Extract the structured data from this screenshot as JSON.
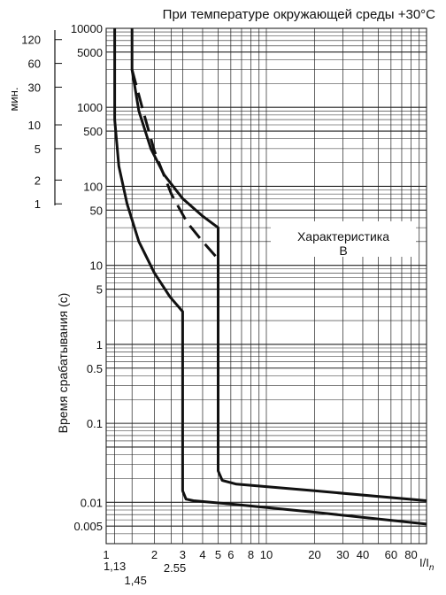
{
  "chart_data": {
    "type": "line",
    "title": "При температуре окружающей среды +30°C",
    "xlabel_main": "I/I",
    "xlabel_sub": "n",
    "ylabel": "Время срабатывания (с)",
    "minutes_label": "мин.",
    "annotation_lines": [
      "Характеристика",
      "B"
    ],
    "x_scale": "log",
    "y_scale": "log",
    "xlim": [
      1,
      100
    ],
    "ylim": [
      0.003,
      10000
    ],
    "grid": true,
    "x_tick_values": [
      1,
      2,
      3,
      4,
      5,
      6,
      8,
      10,
      20,
      30,
      40,
      60,
      80
    ],
    "x_tick_labels": [
      "1",
      "2",
      "3",
      "4",
      "5",
      "6",
      "8",
      "10",
      "20",
      "30",
      "40",
      "60",
      "80"
    ],
    "x_extra_marks": [
      {
        "value": 1.13,
        "label": "1,13"
      },
      {
        "value": 1.45,
        "label": "1,45"
      },
      {
        "value": 2.55,
        "label": "2.55"
      }
    ],
    "y_tick_values": [
      10000,
      5000,
      1000,
      500,
      100,
      50,
      10,
      5,
      1,
      0.5,
      0.1,
      0.01,
      0.005
    ],
    "y_tick_labels": [
      "10000",
      "5000",
      "1000",
      "500",
      "100",
      "50",
      "10",
      "5",
      "1",
      "0.5",
      "0.1",
      "0.01",
      "0.005"
    ],
    "minute_tick_values": [
      7200,
      3600,
      1800,
      600,
      300,
      120,
      60
    ],
    "minute_tick_labels": [
      "120",
      "60",
      "30",
      "10",
      "5",
      "2",
      "1"
    ],
    "series": [
      {
        "style": "solid",
        "points": [
          [
            1.13,
            10000
          ],
          [
            1.13,
            700
          ],
          [
            1.2,
            180
          ],
          [
            1.35,
            60
          ],
          [
            1.6,
            20
          ],
          [
            2.0,
            8
          ],
          [
            2.5,
            4
          ],
          [
            3.0,
            2.6
          ],
          [
            3.0,
            0.014
          ],
          [
            3.15,
            0.011
          ],
          [
            3.5,
            0.0105
          ],
          [
            6,
            0.0095
          ],
          [
            20,
            0.0075
          ],
          [
            100,
            0.0053
          ]
        ]
      },
      {
        "style": "solid",
        "points": [
          [
            1.45,
            10000
          ],
          [
            1.45,
            3000
          ],
          [
            1.6,
            900
          ],
          [
            1.9,
            300
          ],
          [
            2.3,
            140
          ],
          [
            3.0,
            70
          ],
          [
            4.0,
            42
          ],
          [
            5.0,
            30
          ],
          [
            5.0,
            0.025
          ],
          [
            5.3,
            0.019
          ],
          [
            6.5,
            0.017
          ],
          [
            20,
            0.014
          ],
          [
            100,
            0.0105
          ]
        ]
      },
      {
        "style": "dashed",
        "points": [
          [
            1.45,
            3000
          ],
          [
            1.7,
            900
          ],
          [
            2.0,
            280
          ],
          [
            2.55,
            80
          ],
          [
            3.2,
            35
          ],
          [
            4.0,
            20
          ],
          [
            5.0,
            12
          ]
        ]
      }
    ]
  }
}
